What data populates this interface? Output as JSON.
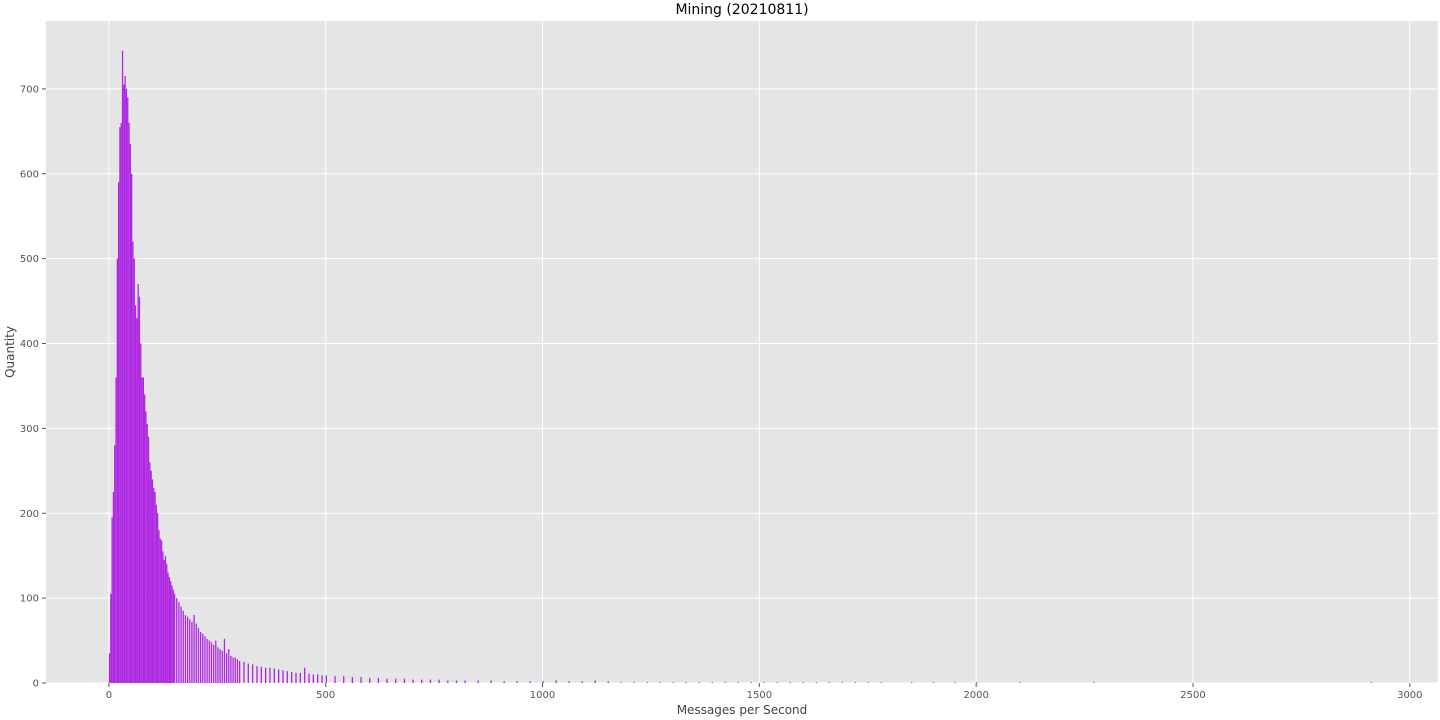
{
  "chart_data": {
    "type": "histogram",
    "title": "Mining (20210811)",
    "xlabel": "Messages per Second",
    "ylabel": "Quantity",
    "xlim": [
      -145,
      3065
    ],
    "ylim": [
      0,
      780
    ],
    "x_ticks": [
      0,
      500,
      1000,
      1500,
      2000,
      2500,
      3000
    ],
    "y_ticks": [
      0,
      100,
      200,
      300,
      400,
      500,
      600,
      700
    ],
    "grid": true,
    "bar_color": "#ad27e2",
    "background_color": "#e5e5e5",
    "grid_color": "#ffffff",
    "bin_width": 3,
    "series": [
      {
        "points": [
          [
            0,
            35
          ],
          [
            3,
            105
          ],
          [
            6,
            195
          ],
          [
            9,
            225
          ],
          [
            12,
            280
          ],
          [
            15,
            360
          ],
          [
            18,
            500
          ],
          [
            21,
            590
          ],
          [
            24,
            655
          ],
          [
            27,
            660
          ],
          [
            30,
            745
          ],
          [
            33,
            705
          ],
          [
            36,
            715
          ],
          [
            39,
            700
          ],
          [
            42,
            690
          ],
          [
            45,
            660
          ],
          [
            48,
            635
          ],
          [
            51,
            600
          ],
          [
            54,
            520
          ],
          [
            57,
            500
          ],
          [
            60,
            445
          ],
          [
            63,
            430
          ],
          [
            66,
            470
          ],
          [
            69,
            455
          ],
          [
            72,
            400
          ],
          [
            75,
            360
          ],
          [
            78,
            360
          ],
          [
            81,
            340
          ],
          [
            84,
            320
          ],
          [
            87,
            305
          ],
          [
            90,
            290
          ],
          [
            93,
            260
          ],
          [
            96,
            250
          ],
          [
            99,
            240
          ],
          [
            102,
            230
          ],
          [
            105,
            225
          ],
          [
            108,
            210
          ],
          [
            111,
            200
          ],
          [
            114,
            180
          ],
          [
            117,
            170
          ],
          [
            120,
            168
          ],
          [
            123,
            155
          ],
          [
            126,
            145
          ],
          [
            129,
            150
          ],
          [
            132,
            140
          ],
          [
            135,
            130
          ],
          [
            138,
            125
          ],
          [
            141,
            120
          ],
          [
            144,
            115
          ],
          [
            147,
            110
          ],
          [
            150,
            105
          ],
          [
            155,
            100
          ],
          [
            160,
            95
          ],
          [
            165,
            90
          ],
          [
            170,
            85
          ],
          [
            175,
            80
          ],
          [
            180,
            78
          ],
          [
            185,
            75
          ],
          [
            190,
            72
          ],
          [
            195,
            80
          ],
          [
            200,
            70
          ],
          [
            205,
            65
          ],
          [
            210,
            60
          ],
          [
            215,
            58
          ],
          [
            220,
            55
          ],
          [
            225,
            52
          ],
          [
            230,
            50
          ],
          [
            235,
            48
          ],
          [
            240,
            45
          ],
          [
            245,
            50
          ],
          [
            250,
            42
          ],
          [
            255,
            40
          ],
          [
            260,
            38
          ],
          [
            265,
            52
          ],
          [
            270,
            35
          ],
          [
            275,
            40
          ],
          [
            280,
            32
          ],
          [
            285,
            30
          ],
          [
            290,
            30
          ],
          [
            295,
            28
          ],
          [
            300,
            26
          ],
          [
            310,
            25
          ],
          [
            320,
            23
          ],
          [
            330,
            22
          ],
          [
            340,
            20
          ],
          [
            350,
            19
          ],
          [
            360,
            18
          ],
          [
            370,
            18
          ],
          [
            380,
            17
          ],
          [
            390,
            16
          ],
          [
            400,
            15
          ],
          [
            410,
            14
          ],
          [
            420,
            13
          ],
          [
            430,
            12
          ],
          [
            440,
            12
          ],
          [
            450,
            18
          ],
          [
            460,
            11
          ],
          [
            470,
            10
          ],
          [
            480,
            10
          ],
          [
            490,
            9
          ],
          [
            500,
            9
          ],
          [
            520,
            8
          ],
          [
            540,
            8
          ],
          [
            560,
            7
          ],
          [
            580,
            7
          ],
          [
            600,
            6
          ],
          [
            620,
            6
          ],
          [
            640,
            5
          ],
          [
            660,
            5
          ],
          [
            680,
            5
          ],
          [
            700,
            4
          ],
          [
            720,
            4
          ],
          [
            740,
            4
          ],
          [
            760,
            4
          ],
          [
            780,
            3
          ],
          [
            800,
            3
          ],
          [
            820,
            3
          ],
          [
            850,
            3
          ],
          [
            880,
            3
          ],
          [
            910,
            2
          ],
          [
            940,
            2
          ],
          [
            970,
            2
          ],
          [
            1000,
            2
          ],
          [
            1030,
            3
          ],
          [
            1060,
            2
          ],
          [
            1090,
            2
          ],
          [
            1120,
            3
          ],
          [
            1150,
            2
          ],
          [
            1180,
            1
          ],
          [
            1210,
            1
          ],
          [
            1240,
            1
          ],
          [
            1270,
            1
          ],
          [
            1300,
            1
          ],
          [
            1330,
            1
          ],
          [
            1360,
            1
          ],
          [
            1390,
            1
          ],
          [
            1420,
            1
          ],
          [
            1450,
            1
          ],
          [
            1480,
            1
          ],
          [
            1510,
            1
          ],
          [
            1540,
            1
          ],
          [
            1570,
            1
          ],
          [
            1600,
            1
          ],
          [
            1630,
            1
          ],
          [
            1660,
            1
          ],
          [
            1690,
            1
          ],
          [
            1720,
            1
          ],
          [
            1750,
            1
          ],
          [
            1780,
            1
          ],
          [
            1850,
            1
          ],
          [
            1900,
            1
          ],
          [
            1950,
            1
          ],
          [
            2000,
            1
          ],
          [
            2100,
            1
          ],
          [
            2270,
            1
          ],
          [
            2910,
            1
          ]
        ]
      }
    ]
  }
}
